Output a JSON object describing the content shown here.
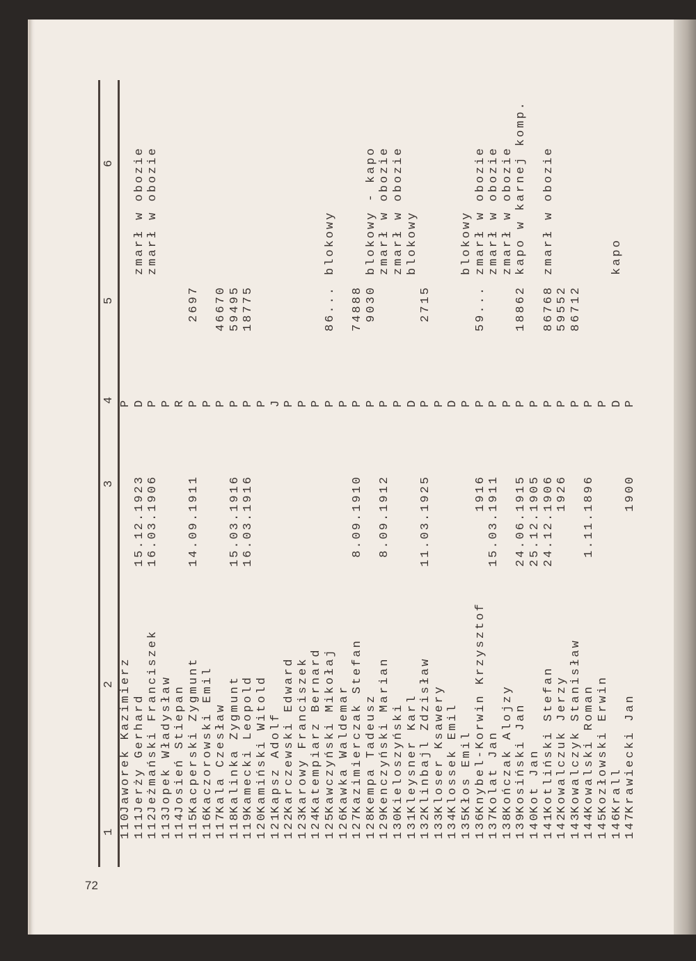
{
  "page_number": "72",
  "headers": [
    "1",
    "2",
    "3",
    "4",
    "5",
    "6"
  ],
  "rows": [
    {
      "no": "110",
      "name": "Jaworek Kazimierz",
      "date": "",
      "cat": "P",
      "num": "",
      "note": ""
    },
    {
      "no": "111",
      "name": "Jerży Gerhard",
      "date": "15.12.1923",
      "cat": "D",
      "num": "",
      "note": "zmarł w obozie"
    },
    {
      "no": "112",
      "name": "Jeżmański Franciszek",
      "date": "16.03.1906",
      "cat": "P",
      "num": "",
      "note": "zmarł w obozie"
    },
    {
      "no": "113",
      "name": "Jopek Władysław",
      "date": "",
      "cat": "P",
      "num": "",
      "note": ""
    },
    {
      "no": "114",
      "name": "Josień Stiepan",
      "date": "",
      "cat": "R",
      "num": "",
      "note": ""
    },
    {
      "no": "115",
      "name": "Kacperski Zygmunt",
      "date": "14.09.1911",
      "cat": "P",
      "num": "2697",
      "note": ""
    },
    {
      "no": "116",
      "name": "Kaczorowski Emil",
      "date": "",
      "cat": "P",
      "num": "",
      "note": ""
    },
    {
      "no": "117",
      "name": "Kala Czesław",
      "date": "",
      "cat": "P",
      "num": "46670",
      "note": ""
    },
    {
      "no": "118",
      "name": "Kalinka Zygmunt",
      "date": "15.03.1916",
      "cat": "P",
      "num": "59495",
      "note": ""
    },
    {
      "no": "119",
      "name": "Kamecki Leopold",
      "date": "16.03.1916",
      "cat": "P",
      "num": "18775",
      "note": ""
    },
    {
      "no": "120",
      "name": "Kamiński Witold",
      "date": "",
      "cat": "P",
      "num": "",
      "note": ""
    },
    {
      "no": "121",
      "name": "Kapsz Adolf",
      "date": "",
      "cat": "J",
      "num": "",
      "note": ""
    },
    {
      "no": "122",
      "name": "Karczewski Edward",
      "date": "",
      "cat": "P",
      "num": "",
      "note": ""
    },
    {
      "no": "123",
      "name": "Karowy Franciszek",
      "date": "",
      "cat": "P",
      "num": "",
      "note": ""
    },
    {
      "no": "124",
      "name": "Katempiarz Bernard",
      "date": "",
      "cat": "P",
      "num": "",
      "note": ""
    },
    {
      "no": "125",
      "name": "Kawczyński Mikołaj",
      "date": "",
      "cat": "P",
      "num": "86...",
      "note": "blokowy"
    },
    {
      "no": "126",
      "name": "Kawka Waldemar",
      "date": "",
      "cat": "P",
      "num": "",
      "note": ""
    },
    {
      "no": "127",
      "name": "Kazimierczak Stefan",
      "date": "8.09.1910",
      "cat": "P",
      "num": "74888",
      "note": ""
    },
    {
      "no": "128",
      "name": "Kempa Tadeusz",
      "date": "",
      "cat": "P",
      "num": "9030",
      "note": "blokowy - kapo"
    },
    {
      "no": "129",
      "name": "Kenczyński Marian",
      "date": "8.09.1912",
      "cat": "P",
      "num": "",
      "note": "zmarł w obozie"
    },
    {
      "no": "130",
      "name": "Kieloszyński",
      "date": "",
      "cat": "P",
      "num": "",
      "note": "zmarł w obozie"
    },
    {
      "no": "131",
      "name": "Kleysner Karl",
      "date": "",
      "cat": "D",
      "num": "",
      "note": "blokowy"
    },
    {
      "no": "132",
      "name": "Klinbajl Zdzisław",
      "date": "11.03.1925",
      "cat": "P",
      "num": "2715",
      "note": ""
    },
    {
      "no": "133",
      "name": "Kloser Ksawery",
      "date": "",
      "cat": "P",
      "num": "",
      "note": ""
    },
    {
      "no": "134",
      "name": "Klossek Emil",
      "date": "",
      "cat": "D",
      "num": "",
      "note": ""
    },
    {
      "no": "135",
      "name": "Kłos Emil",
      "date": "",
      "cat": "P",
      "num": "",
      "note": "blokowy"
    },
    {
      "no": "136",
      "name": "Knybel-Korwin Krzysztof",
      "date": "1916",
      "cat": "P",
      "num": "59...",
      "note": "zmarł w obozie"
    },
    {
      "no": "137",
      "name": "Kolat Jan",
      "date": "15.03.1911",
      "cat": "P",
      "num": "",
      "note": "zmarł w obozie"
    },
    {
      "no": "138",
      "name": "Kończak Alojzy",
      "date": "",
      "cat": "P",
      "num": "",
      "note": "zmarł w obozie"
    },
    {
      "no": "139",
      "name": "Kosiński Jan",
      "date": "24.06.1915",
      "cat": "P",
      "num": "18862",
      "note": "kapo w karnej komp."
    },
    {
      "no": "140",
      "name": "Kot Jan",
      "date": "25.12.1905",
      "cat": "P",
      "num": "",
      "note": ""
    },
    {
      "no": "141",
      "name": "Kotliński Stefan",
      "date": "24.12.1906",
      "cat": "P",
      "num": "86768",
      "note": "zmarł w obozie"
    },
    {
      "no": "142",
      "name": "Kowalczuk Jerzy",
      "date": "1926",
      "cat": "P",
      "num": "59552",
      "note": ""
    },
    {
      "no": "143",
      "name": "Kowalczyk Stanisław",
      "date": "",
      "cat": "P",
      "num": "86712",
      "note": ""
    },
    {
      "no": "144",
      "name": "Kowalski Roman",
      "date": "1.11.1896",
      "cat": "P",
      "num": "",
      "note": ""
    },
    {
      "no": "145",
      "name": "Kozłowski Erwin",
      "date": "",
      "cat": "P",
      "num": "",
      "note": ""
    },
    {
      "no": "146",
      "name": "Krall",
      "date": "",
      "cat": "D",
      "num": "",
      "note": "kapo"
    },
    {
      "no": "147",
      "name": "Krawiecki Jan",
      "date": "1900",
      "cat": "P",
      "num": "",
      "note": ""
    }
  ]
}
